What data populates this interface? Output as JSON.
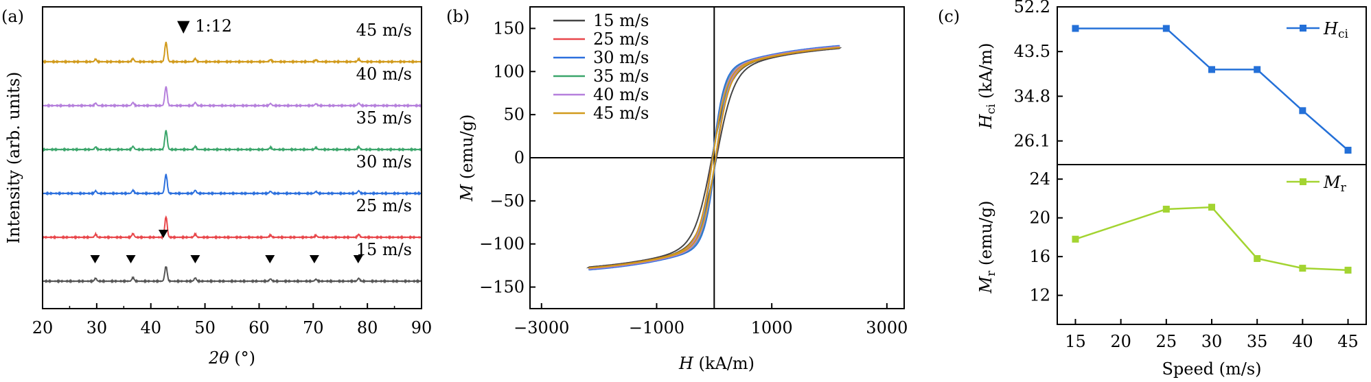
{
  "panels": {
    "a": {
      "label": "(a)",
      "chart_data": {
        "type": "line",
        "xlabel_var": "2θ",
        "xlabel_unit": " (°)",
        "ylabel": "Intensity (arb. units)",
        "xlim": [
          20,
          90
        ],
        "xticks": [
          20,
          30,
          40,
          50,
          60,
          70,
          80,
          90
        ],
        "marker_legend": "▼ 1:12",
        "marker_positions_2theta": [
          29.7,
          36.3,
          42.3,
          48.2,
          62.0,
          70.2,
          78.3
        ],
        "peaks_2theta": [
          29.8,
          36.7,
          42.8,
          48.2,
          62.1,
          70.5,
          78.4
        ],
        "series": [
          {
            "name": "15 m/s",
            "color": "#555555",
            "peak_heights": [
              0.3,
              0.35,
              1.45,
              0.32,
              0.22,
              0.18,
              0.28
            ]
          },
          {
            "name": "25 m/s",
            "color": "#e8464a",
            "peak_heights": [
              0.3,
              0.35,
              2.0,
              0.3,
              0.2,
              0.18,
              0.28
            ]
          },
          {
            "name": "30 m/s",
            "color": "#2b6fdd",
            "peak_heights": [
              0.25,
              0.3,
              1.85,
              0.3,
              0.2,
              0.18,
              0.25
            ]
          },
          {
            "name": "35 m/s",
            "color": "#3aa56a",
            "peak_heights": [
              0.25,
              0.3,
              1.85,
              0.3,
              0.2,
              0.18,
              0.25
            ]
          },
          {
            "name": "40 m/s",
            "color": "#b57fdc",
            "peak_heights": [
              0.25,
              0.3,
              1.85,
              0.3,
              0.2,
              0.18,
              0.25
            ]
          },
          {
            "name": "45 m/s",
            "color": "#d19a1b",
            "peak_heights": [
              0.25,
              0.3,
              1.9,
              0.3,
              0.2,
              0.18,
              0.25
            ]
          }
        ]
      }
    },
    "b": {
      "label": "(b)",
      "chart_data": {
        "type": "line",
        "xlabel_var": "H",
        "xlabel_unit": " (kA/m)",
        "ylabel_var": "M",
        "ylabel_unit": " (emu/g)",
        "xlim": [
          -3200,
          3300
        ],
        "ylim": [
          -175,
          175
        ],
        "xticks": [
          -3000,
          -1000,
          1000,
          3000
        ],
        "xtick_labels": [
          "−3000",
          "−1000",
          "1000",
          "3000"
        ],
        "yticks": [
          -150,
          -100,
          -50,
          0,
          50,
          100,
          150
        ],
        "ytick_labels": [
          "−150",
          "−100",
          "−50",
          "0",
          "50",
          "100",
          "150"
        ],
        "legend_position": "top-left",
        "series": [
          {
            "name": "15 m/s",
            "color": "#444444",
            "Ms": 134,
            "Hc": 40,
            "a": 300
          },
          {
            "name": "25 m/s",
            "color": "#e8464a",
            "Ms": 135,
            "Hc": 30,
            "a": 230
          },
          {
            "name": "30 m/s",
            "color": "#2b6fdd",
            "Ms": 137,
            "Hc": 30,
            "a": 200
          },
          {
            "name": "35 m/s",
            "color": "#3aa56a",
            "Ms": 136,
            "Hc": 25,
            "a": 215
          },
          {
            "name": "40 m/s",
            "color": "#b57fdc",
            "Ms": 136,
            "Hc": 25,
            "a": 225
          },
          {
            "name": "45 m/s",
            "color": "#d19a1b",
            "Ms": 135,
            "Hc": 25,
            "a": 240
          }
        ]
      }
    },
    "c": {
      "label": "(c)",
      "xlabel": "Speed (m/s)",
      "xlim": [
        13,
        47
      ],
      "xticks": [
        15,
        20,
        25,
        30,
        35,
        40,
        45
      ],
      "top": {
        "chart_data": {
          "type": "line",
          "ylabel_var": "H",
          "ylabel_sub": "ci",
          "ylabel_unit": " (kA/m)",
          "ylim": [
            21.5,
            52.2
          ],
          "yticks": [
            26.1,
            34.8,
            43.5,
            52.2
          ],
          "ytick_labels": [
            "26.1",
            "34.8",
            "43.5",
            "52.2"
          ],
          "series": [
            {
              "name": "Hci",
              "legend_main": "H",
              "legend_sub": "ci",
              "color": "#2470d8",
              "x": [
                15,
                25,
                30,
                35,
                40,
                45
              ],
              "y": [
                48.0,
                48.0,
                40.0,
                40.0,
                32.0,
                24.3
              ]
            }
          ]
        }
      },
      "bottom": {
        "chart_data": {
          "type": "line",
          "ylabel_var": "M",
          "ylabel_sub": "r",
          "ylabel_unit": " (emu/g)",
          "ylim": [
            9,
            25.5
          ],
          "yticks": [
            12,
            16,
            20,
            24
          ],
          "ytick_labels": [
            "12",
            "16",
            "20",
            "24"
          ],
          "series": [
            {
              "name": "Mr",
              "legend_main": "M",
              "legend_sub": "r",
              "color": "#a3d431",
              "x": [
                15,
                25,
                30,
                35,
                40,
                45
              ],
              "y": [
                17.8,
                20.9,
                21.1,
                15.8,
                14.8,
                14.6
              ]
            }
          ]
        }
      }
    }
  }
}
